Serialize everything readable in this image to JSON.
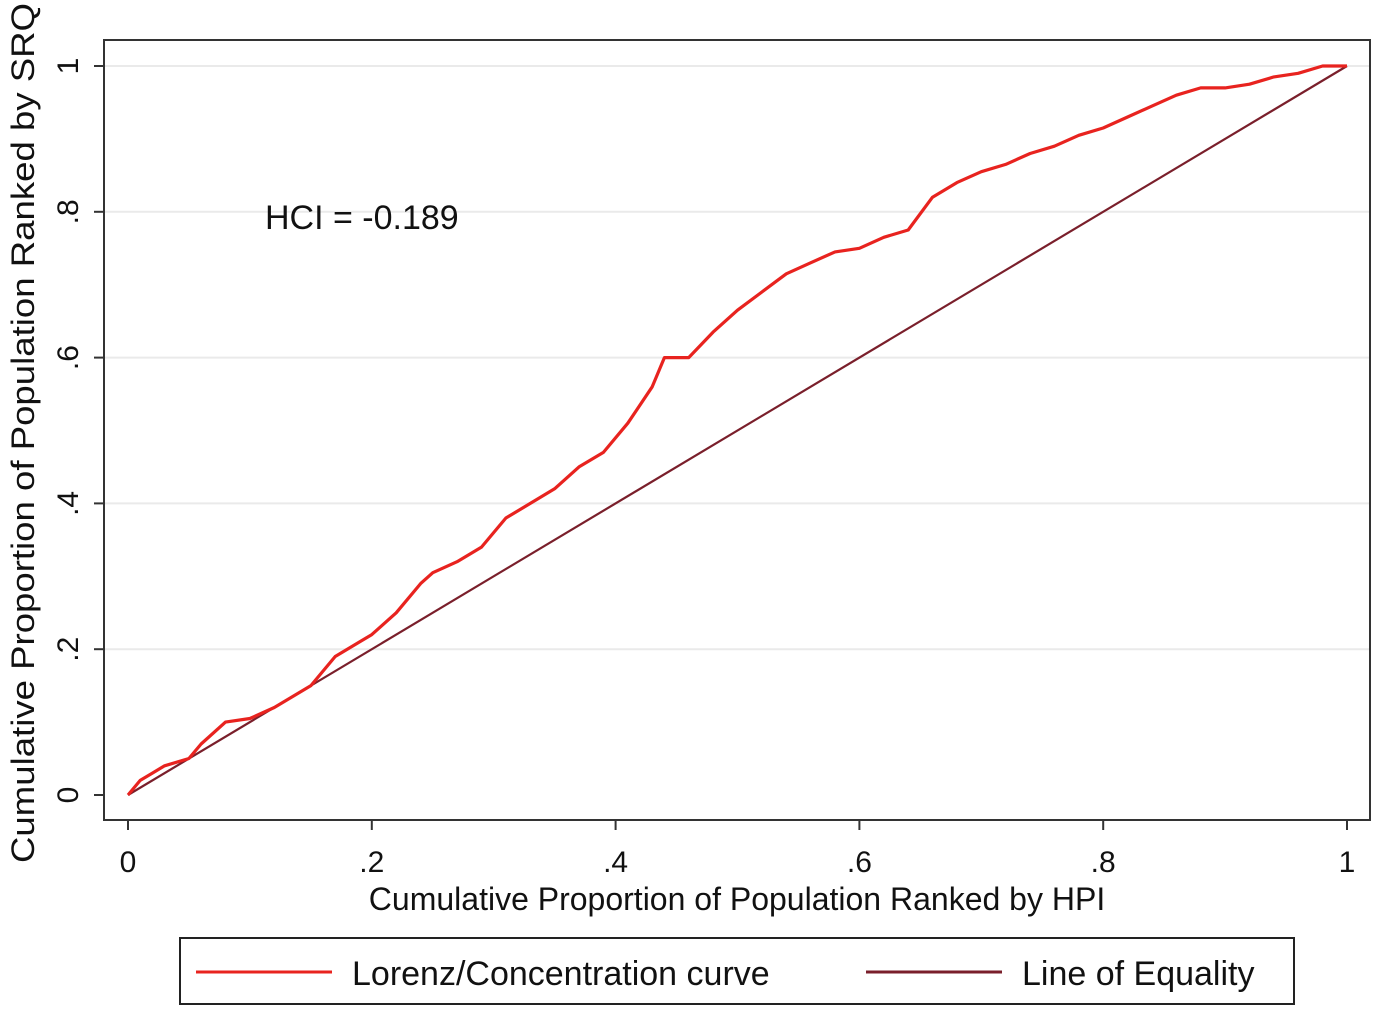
{
  "chart_data": {
    "type": "line",
    "xlabel": "Cumulative Proportion of Population Ranked by HPI",
    "ylabel": "Cumulative Proportion of Population Ranked by SRQ",
    "xlim": [
      0,
      1
    ],
    "ylim": [
      0,
      1
    ],
    "x_ticks": [
      {
        "value": 0,
        "label": "0"
      },
      {
        "value": 0.2,
        "label": ".2"
      },
      {
        "value": 0.4,
        "label": ".4"
      },
      {
        "value": 0.6,
        "label": ".6"
      },
      {
        "value": 0.8,
        "label": ".8"
      },
      {
        "value": 1,
        "label": "1"
      }
    ],
    "y_ticks": [
      {
        "value": 0,
        "label": "0"
      },
      {
        "value": 0.2,
        "label": ".2"
      },
      {
        "value": 0.4,
        "label": ".4"
      },
      {
        "value": 0.6,
        "label": ".6"
      },
      {
        "value": 0.8,
        "label": ".8"
      },
      {
        "value": 1,
        "label": "1"
      }
    ],
    "grid": "horizontal",
    "annotation": "HCI = -0.189",
    "legend_position": "bottom",
    "series": [
      {
        "name": "Lorenz/Concentration curve",
        "color": "#e8231f",
        "x": [
          0,
          0.01,
          0.02,
          0.03,
          0.05,
          0.06,
          0.08,
          0.1,
          0.12,
          0.15,
          0.17,
          0.19,
          0.2,
          0.22,
          0.24,
          0.25,
          0.27,
          0.29,
          0.31,
          0.33,
          0.35,
          0.37,
          0.39,
          0.41,
          0.43,
          0.44,
          0.46,
          0.48,
          0.5,
          0.52,
          0.54,
          0.56,
          0.58,
          0.6,
          0.62,
          0.64,
          0.66,
          0.68,
          0.7,
          0.72,
          0.74,
          0.76,
          0.78,
          0.8,
          0.82,
          0.84,
          0.86,
          0.88,
          0.9,
          0.92,
          0.94,
          0.96,
          0.98,
          1.0
        ],
        "y": [
          0,
          0.02,
          0.03,
          0.04,
          0.05,
          0.07,
          0.1,
          0.105,
          0.12,
          0.15,
          0.19,
          0.21,
          0.22,
          0.25,
          0.29,
          0.305,
          0.32,
          0.34,
          0.38,
          0.4,
          0.42,
          0.45,
          0.47,
          0.51,
          0.56,
          0.6,
          0.6,
          0.635,
          0.665,
          0.69,
          0.715,
          0.73,
          0.745,
          0.75,
          0.765,
          0.775,
          0.82,
          0.84,
          0.855,
          0.865,
          0.88,
          0.89,
          0.905,
          0.915,
          0.93,
          0.945,
          0.96,
          0.97,
          0.97,
          0.975,
          0.985,
          0.99,
          1.0,
          1.0
        ]
      },
      {
        "name": "Line of Equality",
        "color": "#7a1f2b",
        "x": [
          0,
          1
        ],
        "y": [
          0,
          1
        ]
      }
    ]
  }
}
